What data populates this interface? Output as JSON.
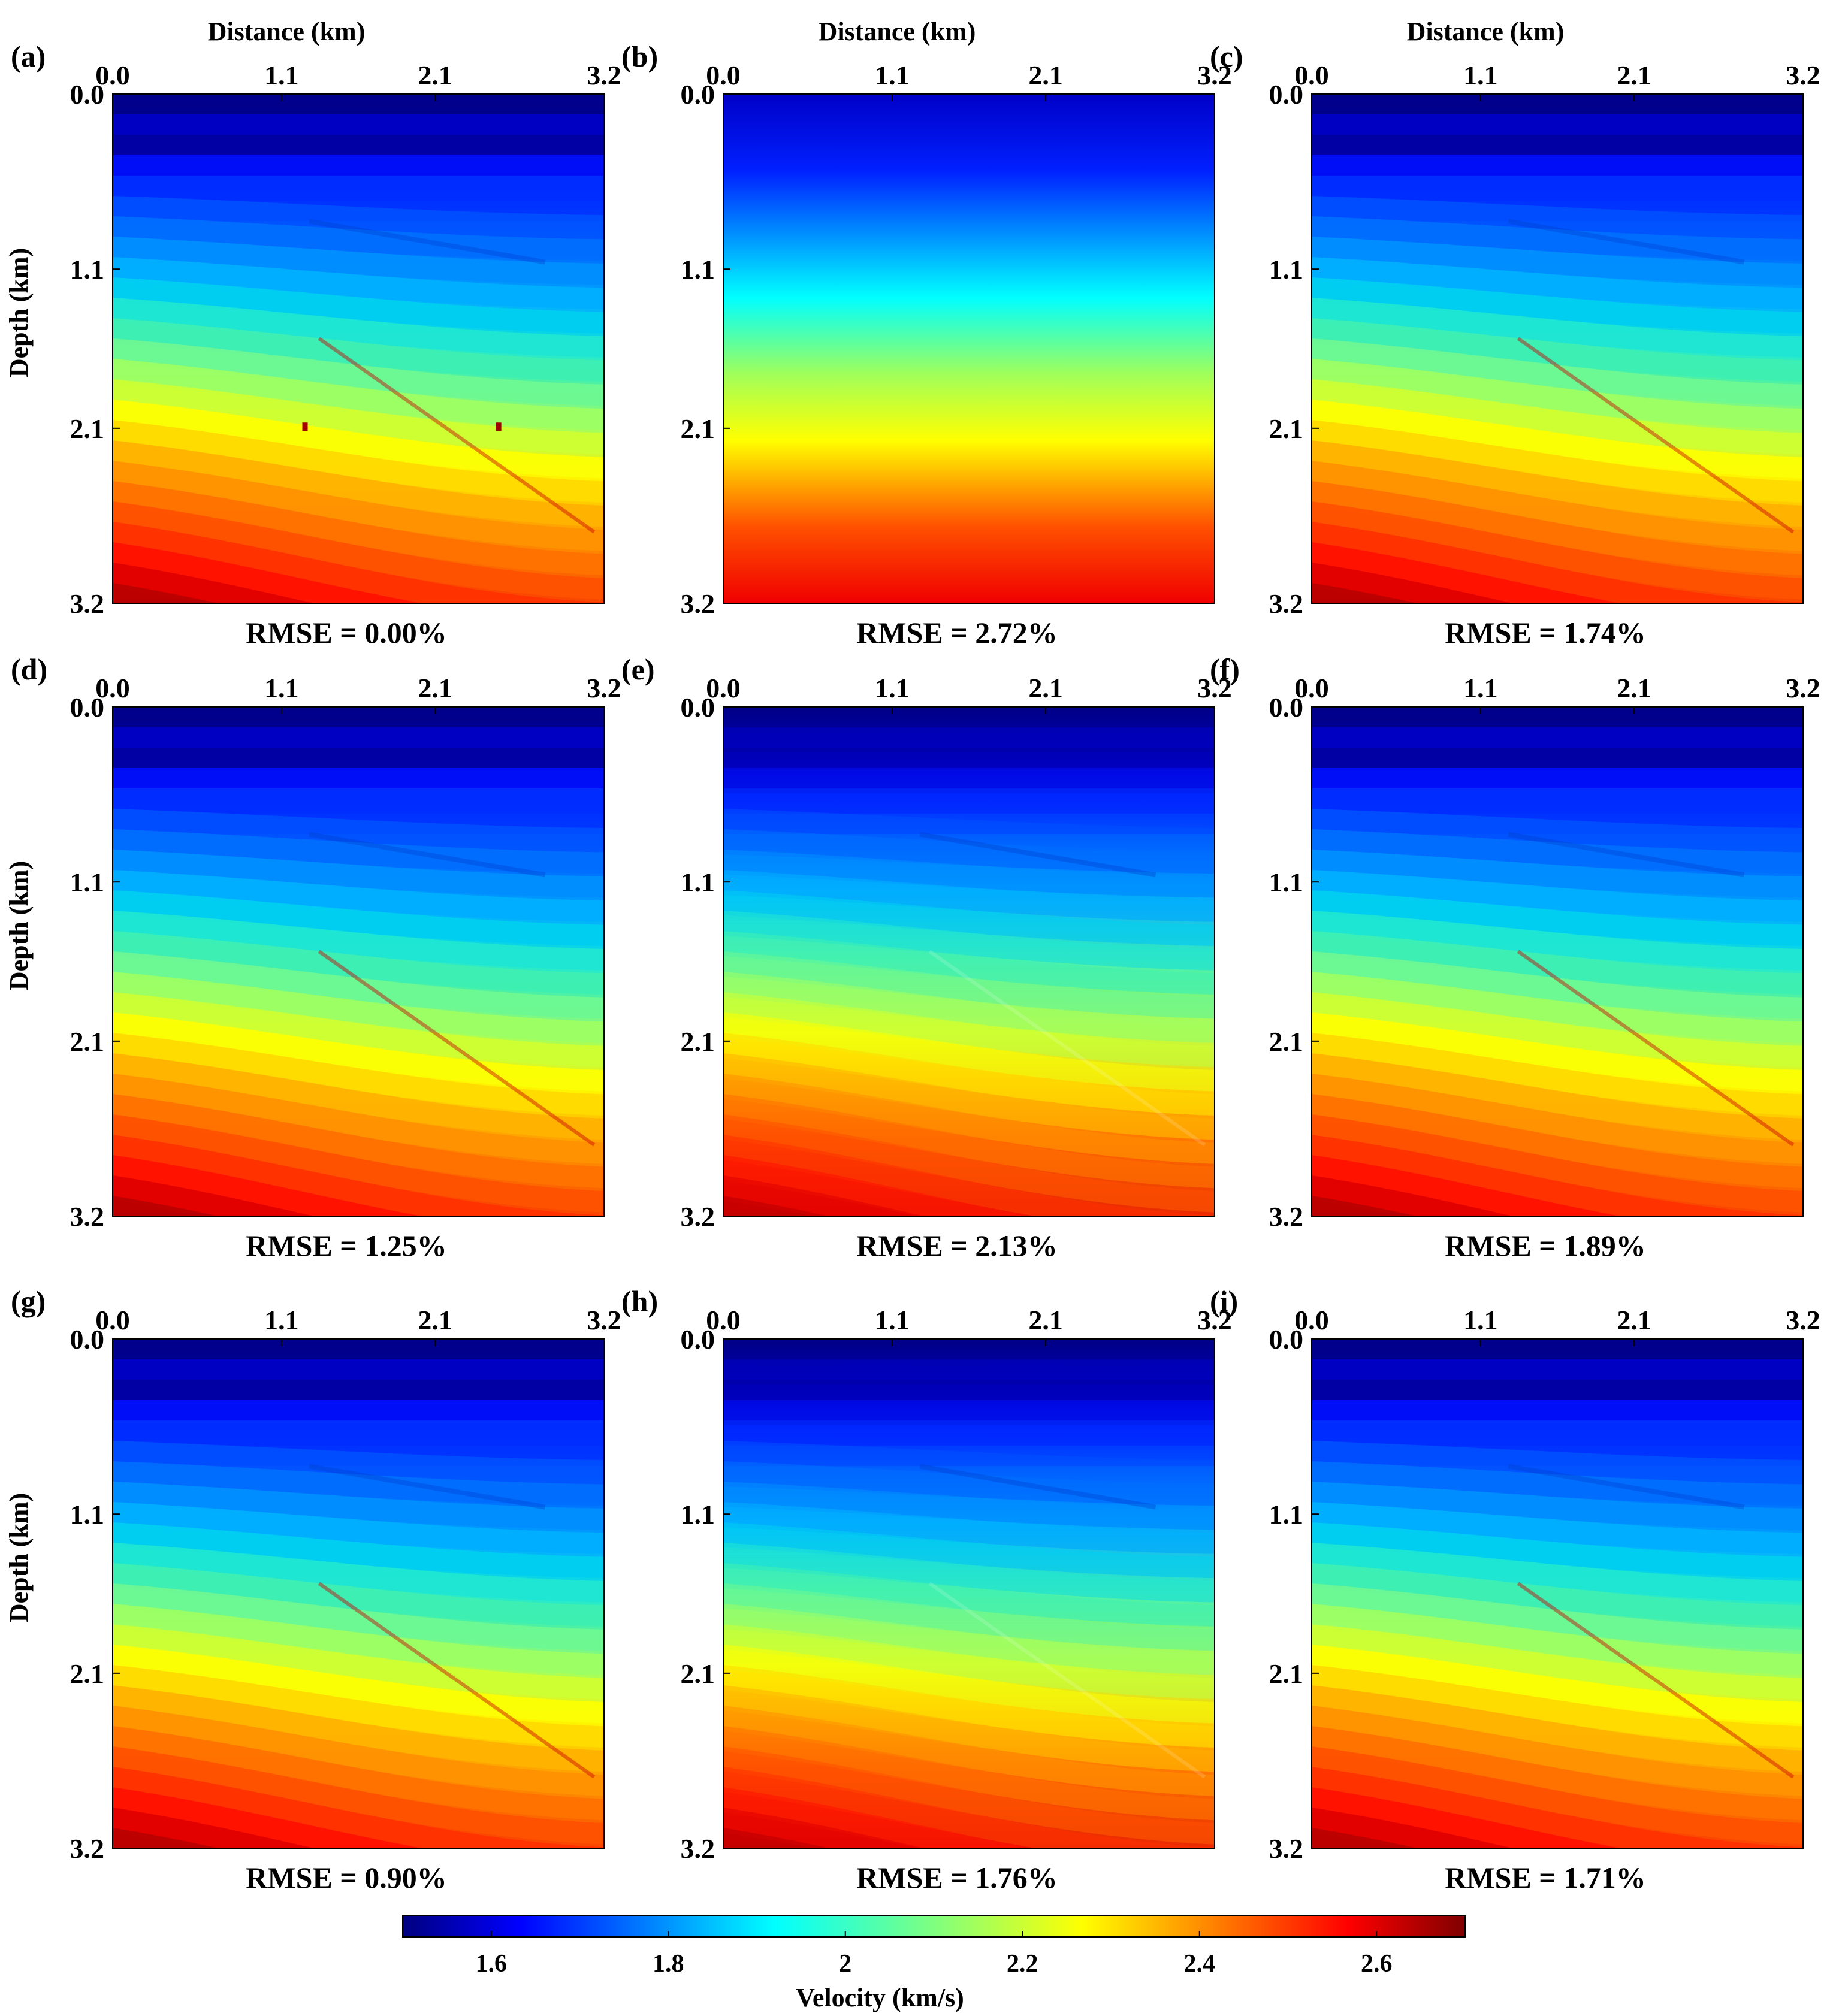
{
  "chart_data": {
    "type": "heatmap",
    "title": "",
    "colormap": "jet",
    "x_axis_label": "Distance (km)",
    "y_axis_label": "Depth (km)",
    "x_ticks": [
      "0.0",
      "1.1",
      "2.1",
      "3.2"
    ],
    "y_ticks": [
      "0.0",
      "1.1",
      "2.1",
      "3.2"
    ],
    "xlim": [
      0.0,
      3.2
    ],
    "ylim": [
      0.0,
      3.2
    ],
    "colorbar": {
      "label": "Velocity (km/s)",
      "ticks": [
        "1.6",
        "1.8",
        "2",
        "2.2",
        "2.4",
        "2.6"
      ],
      "tick_values": [
        1.6,
        1.8,
        2.0,
        2.2,
        2.4,
        2.6
      ],
      "range": [
        1.5,
        2.7
      ]
    },
    "panels": [
      {
        "id": "a",
        "letter": "(a)",
        "rmse": "RMSE = 0.00%",
        "kind": "true"
      },
      {
        "id": "b",
        "letter": "(b)",
        "rmse": "RMSE = 2.72%",
        "kind": "initial"
      },
      {
        "id": "c",
        "letter": "(c)",
        "rmse": "RMSE = 1.74%",
        "kind": "inverted"
      },
      {
        "id": "d",
        "letter": "(d)",
        "rmse": "RMSE = 1.25%",
        "kind": "inverted"
      },
      {
        "id": "e",
        "letter": "(e)",
        "rmse": "RMSE = 2.13%",
        "kind": "smooth"
      },
      {
        "id": "f",
        "letter": "(f)",
        "rmse": "RMSE = 1.89%",
        "kind": "inverted"
      },
      {
        "id": "g",
        "letter": "(g)",
        "rmse": "RMSE = 0.90%",
        "kind": "inverted"
      },
      {
        "id": "h",
        "letter": "(h)",
        "rmse": "RMSE = 1.76%",
        "kind": "smooth"
      },
      {
        "id": "i",
        "letter": "(i)",
        "rmse": "RMSE = 1.71%",
        "kind": "inverted"
      }
    ]
  }
}
